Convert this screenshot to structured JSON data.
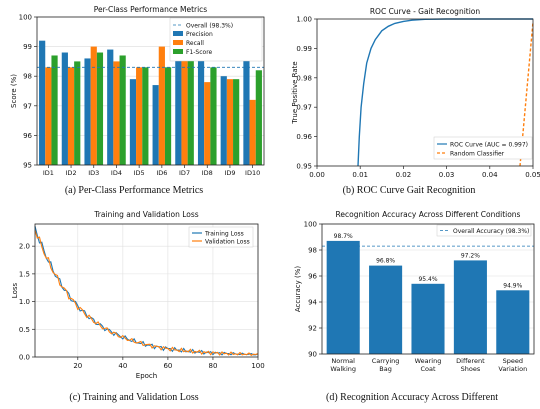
{
  "chart_data": [
    {
      "type": "bar",
      "title": "Per-Class Performance Metrics",
      "caption": "(a) Per-Class Performance Metrics",
      "xlabel": "",
      "ylabel": "Score (%)",
      "ylim": [
        95,
        100
      ],
      "yticks": [
        95,
        96,
        97,
        98,
        99,
        100
      ],
      "categories": [
        "ID1",
        "ID2",
        "ID3",
        "ID4",
        "ID5",
        "ID6",
        "ID7",
        "ID8",
        "ID9",
        "ID10"
      ],
      "series": [
        {
          "name": "Precision",
          "color": "#1f77b4",
          "values": [
            99.2,
            98.8,
            98.6,
            98.9,
            97.9,
            97.7,
            99.0,
            98.8,
            98.0,
            99.2
          ]
        },
        {
          "name": "Recall",
          "color": "#ff7f0e",
          "values": [
            98.3,
            98.3,
            99.0,
            98.5,
            98.3,
            99.0,
            99.3,
            97.8,
            97.9,
            97.2
          ]
        },
        {
          "name": "F1-Score",
          "color": "#2ca02c",
          "values": [
            98.7,
            98.5,
            98.8,
            98.7,
            98.3,
            98.3,
            99.2,
            98.3,
            97.9,
            98.2
          ]
        }
      ],
      "reference_line": {
        "name": "Overall (98.3%)",
        "value": 98.3,
        "color": "#1f77b4"
      },
      "legend": "top-right"
    },
    {
      "type": "line",
      "title": "ROC Curve - Gait Recognition",
      "caption": "(b) ROC Curve Gait Recognition",
      "xlabel": "",
      "ylabel": "True Positive Rate",
      "xlim": [
        0.0,
        0.05
      ],
      "ylim": [
        0.95,
        1.0
      ],
      "xticks": [
        "0.00",
        "0.01",
        "0.02",
        "0.03",
        "0.04",
        "0.05"
      ],
      "yticks": [
        "0.95",
        "0.96",
        "0.97",
        "0.98",
        "0.99",
        "1.00"
      ],
      "series": [
        {
          "name": "ROC Curve (AUC = 0.997)",
          "color": "#1f77b4",
          "style": "solid",
          "x": [
            0.0095,
            0.0098,
            0.0102,
            0.0108,
            0.0115,
            0.0125,
            0.0135,
            0.015,
            0.0165,
            0.018,
            0.02,
            0.022,
            0.025,
            0.03,
            0.035,
            0.04,
            0.05
          ],
          "y": [
            0.95,
            0.96,
            0.97,
            0.978,
            0.985,
            0.99,
            0.993,
            0.996,
            0.9975,
            0.9985,
            0.9992,
            0.9996,
            0.9999,
            1.0,
            1.0,
            1.0,
            1.0
          ]
        },
        {
          "name": "Random Classifier",
          "color": "#ff7f0e",
          "style": "dashed",
          "x": [
            0.047,
            0.05
          ],
          "y": [
            0.95,
            0.999
          ]
        }
      ],
      "legend": "bottom-right"
    },
    {
      "type": "line",
      "title": "Training and Validation Loss",
      "caption": "(c) Training and Validation Loss",
      "xlabel": "Epoch",
      "ylabel": "Loss",
      "xlim": [
        1,
        100
      ],
      "ylim": [
        0,
        2.4
      ],
      "xticks": [
        20,
        40,
        60,
        80,
        100
      ],
      "yticks": [
        "0.0",
        "0.5",
        "1.0",
        "1.5",
        "2.0"
      ],
      "series": [
        {
          "name": "Training Loss",
          "color": "#1f77b4"
        },
        {
          "name": "Validation Loss",
          "color": "#ff7f0e"
        }
      ],
      "legend": "top-right"
    },
    {
      "type": "bar",
      "title": "Recognition Accuracy Across Different Conditions",
      "caption": "(d) Recognition Accuracy Across Different",
      "xlabel": "",
      "ylabel": "Accuracy (%)",
      "ylim": [
        90,
        100
      ],
      "yticks": [
        90,
        92,
        94,
        96,
        98,
        100
      ],
      "categories": [
        [
          "Normal",
          "Walking"
        ],
        [
          "Carrying",
          "Bag"
        ],
        [
          "Wearing",
          "Coat"
        ],
        [
          "Different",
          "Shoes"
        ],
        [
          "Speed",
          "Variation"
        ]
      ],
      "values": [
        98.7,
        96.8,
        95.4,
        97.2,
        94.9
      ],
      "value_labels": [
        "98.7%",
        "96.8%",
        "95.4%",
        "97.2%",
        "94.9%"
      ],
      "color": "#1f77b4",
      "reference_line": {
        "name": "Overall Accuracy (98.3%)",
        "value": 98.3,
        "color": "#1f77b4"
      },
      "legend": "top-right"
    }
  ]
}
